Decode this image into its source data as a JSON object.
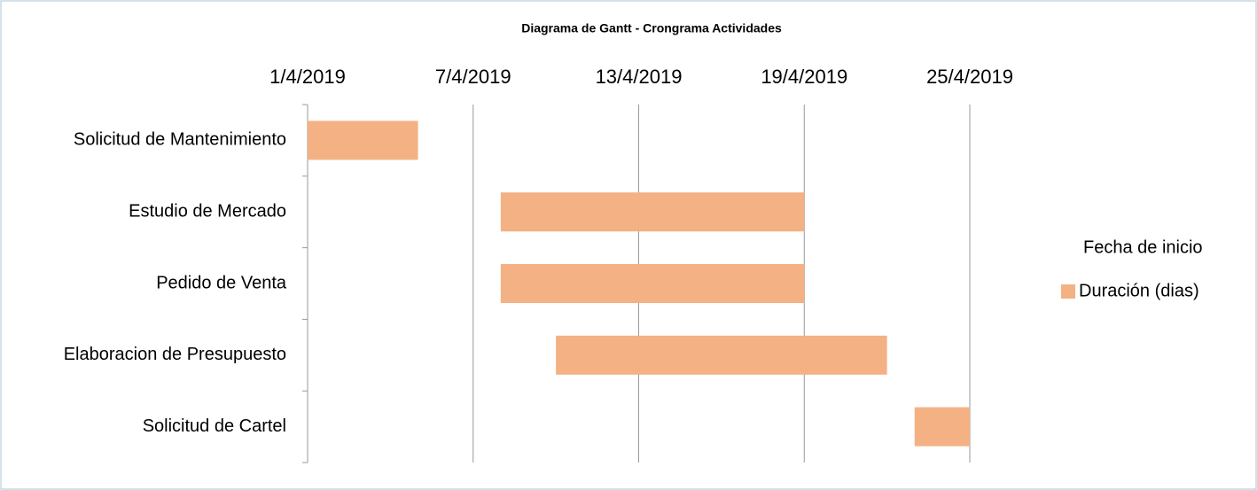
{
  "chart_data": {
    "type": "gantt",
    "title": "Diagrama de Gantt - Crongrama Actividades",
    "categories": [
      "Solicitud de Mantenimiento",
      "Estudio de Mercado",
      "Pedido de Venta",
      "Elaboracion de Presupuesto",
      "Solicitud de Cartel"
    ],
    "series": [
      {
        "name": "Fecha de inicio",
        "color": "none",
        "values": [
          "2019-04-01",
          "2019-04-08",
          "2019-04-08",
          "2019-04-10",
          "2019-04-23"
        ]
      },
      {
        "name": "Duración (dias)",
        "color": "#f4b183",
        "values": [
          4,
          11,
          11,
          12,
          2
        ]
      }
    ],
    "xlim": [
      "2019-04-01",
      "2019-04-25"
    ],
    "xticks": [
      {
        "value": "2019-04-01",
        "label": "1/4/2019"
      },
      {
        "value": "2019-04-07",
        "label": "7/4/2019"
      },
      {
        "value": "2019-04-13",
        "label": "13/4/2019"
      },
      {
        "value": "2019-04-19",
        "label": "19/4/2019"
      },
      {
        "value": "2019-04-25",
        "label": "25/4/2019"
      }
    ],
    "grid": true,
    "legend": "right"
  }
}
